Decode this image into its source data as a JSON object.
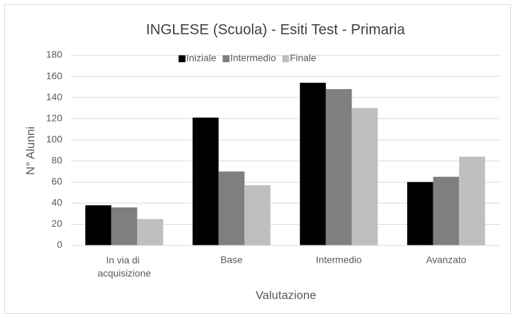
{
  "chart_data": {
    "type": "bar",
    "title": "INGLESE (Scuola) - Esiti Test - Primaria",
    "categories": [
      "In via di acquisizione",
      "Base",
      "Intermedio",
      "Avanzato"
    ],
    "series": [
      {
        "name": "Iniziale",
        "color": "#000000",
        "values": [
          38,
          121,
          154,
          60
        ]
      },
      {
        "name": "Intermedio",
        "color": "#7f7f7f",
        "values": [
          36,
          70,
          148,
          65
        ]
      },
      {
        "name": "Finale",
        "color": "#bfbfbf",
        "values": [
          25,
          57,
          130,
          84
        ]
      }
    ],
    "xlabel": "Valutazione",
    "ylabel": "N° Alunni",
    "ylim": [
      0,
      180
    ],
    "yticks": [
      0,
      20,
      40,
      60,
      80,
      100,
      120,
      140,
      160,
      180
    ],
    "grid": true,
    "legend": "top"
  }
}
